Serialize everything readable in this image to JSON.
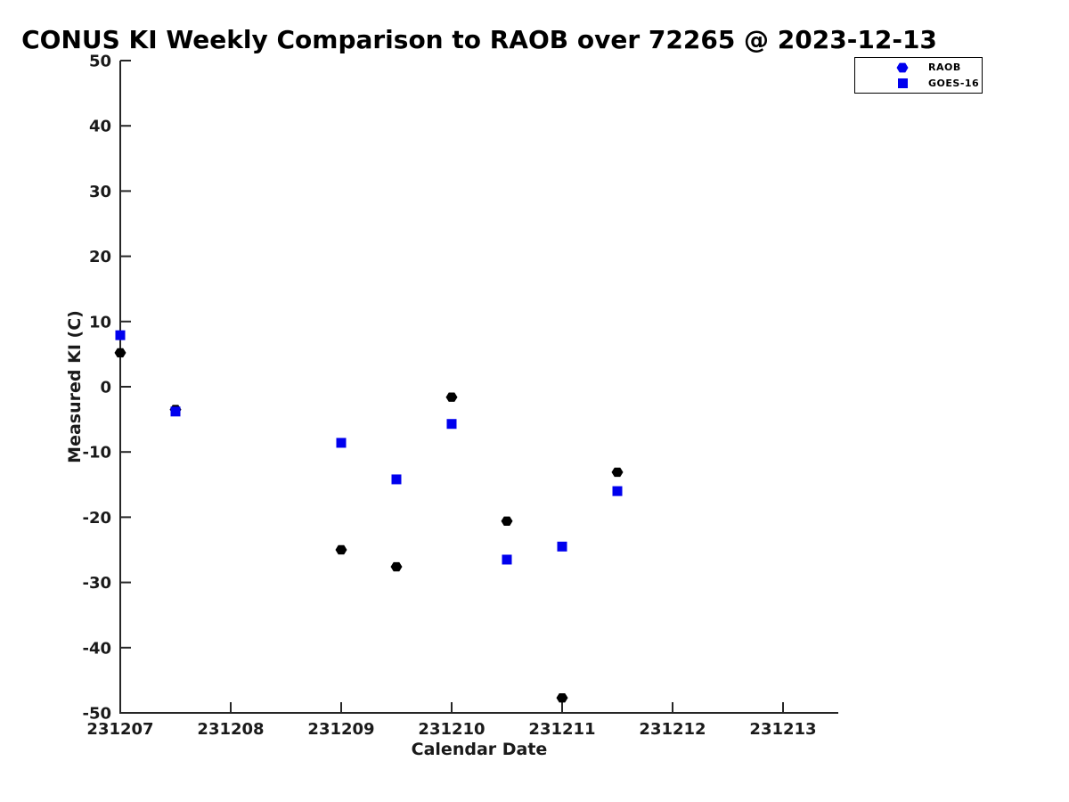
{
  "chart_data": {
    "type": "scatter",
    "title": "CONUS KI Weekly Comparison to RAOB over 72265 @ 2023-12-13",
    "xlabel": "Calendar Date",
    "ylabel": "Measured KI (C)",
    "xlim": [
      231207,
      231213.5
    ],
    "ylim": [
      -50,
      50
    ],
    "xticks": [
      231207,
      231208,
      231209,
      231210,
      231211,
      231212,
      231213
    ],
    "yticks": [
      -50,
      -40,
      -30,
      -20,
      -10,
      0,
      10,
      20,
      30,
      40,
      50
    ],
    "grid": false,
    "legend_position": "top-right",
    "axis_color": "#262626",
    "tick_label_color": "#1a1a1a",
    "series": [
      {
        "name": "RAOB",
        "marker": "hexagon",
        "color": "#000000",
        "legend_color": "#0000ee",
        "points": [
          [
            231207,
            5.2
          ],
          [
            231207.5,
            -3.5
          ],
          [
            231209,
            -25.0
          ],
          [
            231209.5,
            -27.6
          ],
          [
            231210,
            -1.6
          ],
          [
            231210.5,
            -20.6
          ],
          [
            231211,
            -47.7
          ],
          [
            231211.5,
            -13.1
          ]
        ]
      },
      {
        "name": "GOES-16",
        "marker": "square",
        "color": "#0000ee",
        "legend_color": "#0000ee",
        "points": [
          [
            231207,
            7.9
          ],
          [
            231207.5,
            -3.8
          ],
          [
            231209,
            -8.6
          ],
          [
            231209.5,
            -14.2
          ],
          [
            231210,
            -5.7
          ],
          [
            231210.5,
            -26.5
          ],
          [
            231211,
            -24.5
          ],
          [
            231211.5,
            -16.0
          ]
        ]
      }
    ]
  }
}
